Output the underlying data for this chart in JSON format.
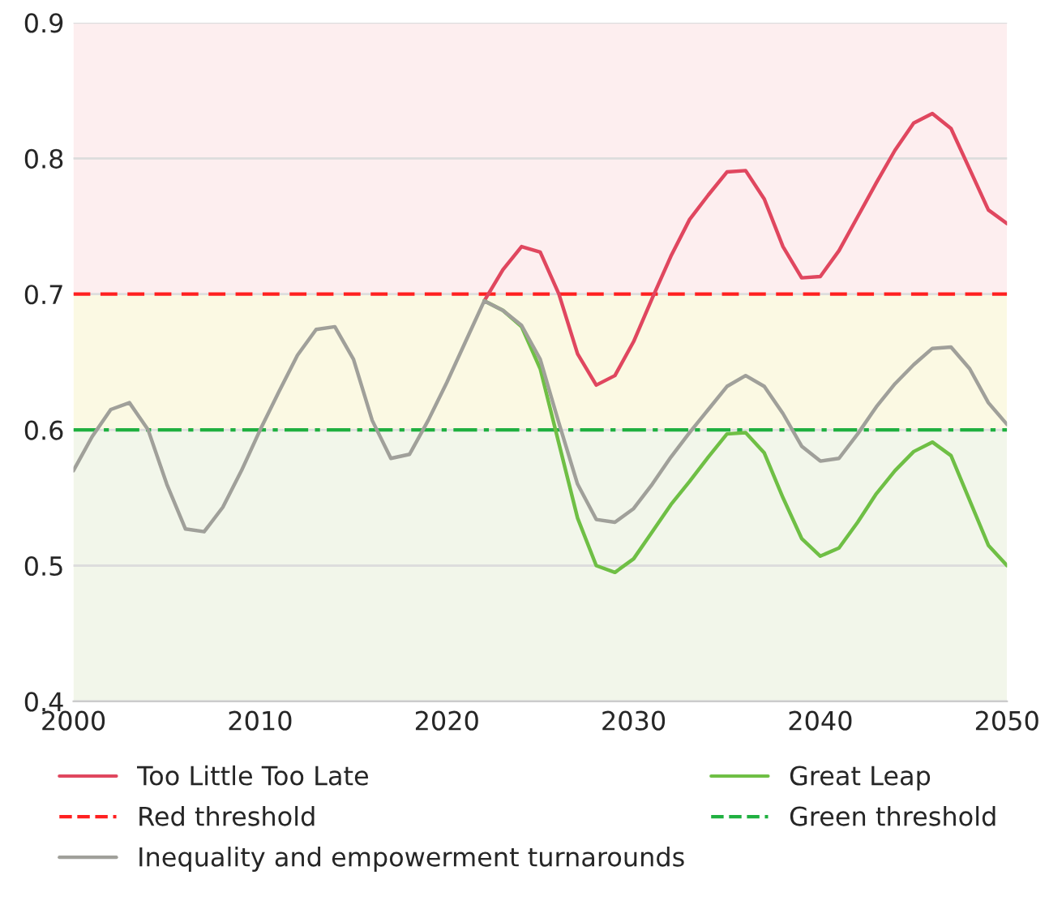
{
  "chart_data": {
    "type": "line",
    "x": [
      2000,
      2001,
      2002,
      2003,
      2004,
      2005,
      2006,
      2007,
      2008,
      2009,
      2010,
      2011,
      2012,
      2013,
      2014,
      2015,
      2016,
      2017,
      2018,
      2019,
      2020,
      2021,
      2022,
      2023,
      2024,
      2025,
      2026,
      2027,
      2028,
      2029,
      2030,
      2031,
      2032,
      2033,
      2034,
      2035,
      2036,
      2037,
      2038,
      2039,
      2040,
      2041,
      2042,
      2043,
      2044,
      2045,
      2046,
      2047,
      2048,
      2049,
      2050
    ],
    "series": [
      {
        "name": "Too Little Too Late",
        "color": "#e0475f",
        "values": [
          null,
          null,
          null,
          null,
          null,
          null,
          null,
          null,
          null,
          null,
          null,
          null,
          null,
          null,
          null,
          null,
          null,
          null,
          null,
          null,
          null,
          null,
          0.695,
          0.718,
          0.735,
          0.731,
          0.7,
          0.656,
          0.633,
          0.64,
          0.665,
          0.697,
          0.728,
          0.755,
          0.773,
          0.79,
          0.791,
          0.77,
          0.735,
          0.712,
          0.713,
          0.732,
          0.757,
          0.782,
          0.806,
          0.826,
          0.833,
          0.822,
          0.792,
          0.762,
          0.752
        ]
      },
      {
        "name": "Great Leap",
        "color": "#6fbf45",
        "values": [
          null,
          null,
          null,
          null,
          null,
          null,
          null,
          null,
          null,
          null,
          null,
          null,
          null,
          null,
          null,
          null,
          null,
          null,
          null,
          null,
          null,
          null,
          0.695,
          0.688,
          0.676,
          0.645,
          0.59,
          0.535,
          0.5,
          0.495,
          0.505,
          0.525,
          0.545,
          0.562,
          0.58,
          0.597,
          0.598,
          0.583,
          0.55,
          0.52,
          0.507,
          0.513,
          0.532,
          0.553,
          0.57,
          0.584,
          0.591,
          0.581,
          0.548,
          0.515,
          0.5
        ]
      },
      {
        "name": "Inequality and empowerment turnarounds",
        "color": "#a0a09a",
        "values": [
          0.57,
          0.595,
          0.615,
          0.62,
          0.6,
          0.56,
          0.527,
          0.525,
          0.543,
          0.57,
          0.6,
          0.628,
          0.655,
          0.674,
          0.676,
          0.652,
          0.607,
          0.579,
          0.582,
          0.607,
          0.635,
          0.665,
          0.695,
          0.688,
          0.677,
          0.652,
          0.605,
          0.56,
          0.534,
          0.532,
          0.542,
          0.56,
          0.58,
          0.598,
          0.615,
          0.632,
          0.64,
          0.632,
          0.612,
          0.588,
          0.577,
          0.579,
          0.597,
          0.617,
          0.634,
          0.648,
          0.66,
          0.661,
          0.645,
          0.62,
          0.604
        ]
      }
    ],
    "ref_lines": [
      {
        "axis": "y",
        "value": 0.7,
        "label": "Red threshold",
        "color": "#ff2020",
        "line_style": "dashed"
      },
      {
        "axis": "y",
        "value": 0.6,
        "label": "Green threshold",
        "color": "#20b040",
        "line_style": "dashdot"
      }
    ],
    "bands": [
      {
        "axis": "y",
        "from": 0.7,
        "to": 0.9,
        "color": "#fdeeef"
      },
      {
        "axis": "y",
        "from": 0.6,
        "to": 0.7,
        "color": "#fbf9e3"
      },
      {
        "axis": "y",
        "from": 0.4,
        "to": 0.6,
        "color": "#f2f6ea"
      }
    ],
    "xlim": [
      2000,
      2050
    ],
    "xticks": [
      2000,
      2010,
      2020,
      2030,
      2040,
      2050
    ],
    "ylim": [
      0.4,
      0.9
    ],
    "yticks": [
      0.4,
      0.5,
      0.6,
      0.7,
      0.8,
      0.9
    ],
    "grid": "y",
    "legend": "bottom",
    "line_style": "solid",
    "marker": "none"
  }
}
